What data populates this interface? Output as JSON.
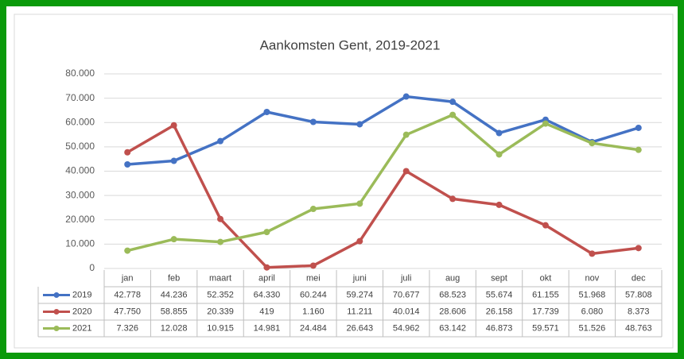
{
  "chart_data": {
    "type": "line",
    "title": "Aankomsten Gent, 2019-2021",
    "categories": [
      "jan",
      "feb",
      "maart",
      "april",
      "mei",
      "juni",
      "juli",
      "aug",
      "sept",
      "okt",
      "nov",
      "dec"
    ],
    "series": [
      {
        "name": "2019",
        "color": "#4472c4",
        "values": [
          42778,
          44236,
          52352,
          64330,
          60244,
          59274,
          70677,
          68523,
          55674,
          61155,
          51968,
          57808
        ],
        "value_labels": [
          "42.778",
          "44.236",
          "52.352",
          "64.330",
          "60.244",
          "59.274",
          "70.677",
          "68.523",
          "55.674",
          "61.155",
          "51.968",
          "57.808"
        ]
      },
      {
        "name": "2020",
        "color": "#c0504d",
        "values": [
          47750,
          58855,
          20339,
          419,
          1160,
          11211,
          40014,
          28606,
          26158,
          17739,
          6080,
          8373
        ],
        "value_labels": [
          "47.750",
          "58.855",
          "20.339",
          "419",
          "1.160",
          "11.211",
          "40.014",
          "28.606",
          "26.158",
          "17.739",
          "6.080",
          "8.373"
        ]
      },
      {
        "name": "2021",
        "color": "#9bbb59",
        "values": [
          7326,
          12028,
          10915,
          14981,
          24484,
          26643,
          54962,
          63142,
          46873,
          59571,
          51526,
          48763
        ],
        "value_labels": [
          "7.326",
          "12.028",
          "10.915",
          "14.981",
          "24.484",
          "26.643",
          "54.962",
          "63.142",
          "46.873",
          "59.571",
          "51.526",
          "48.763"
        ]
      }
    ],
    "ylim": [
      0,
      80000
    ],
    "yticks": [
      0,
      {
        "value": 10000,
        "label": "10.000"
      },
      {
        "value": 20000,
        "label": "20.000"
      },
      {
        "value": 30000,
        "label": "30.000"
      },
      {
        "value": 40000,
        "label": "40.000"
      },
      {
        "value": 50000,
        "label": "50.000"
      },
      {
        "value": 60000,
        "label": "60.000"
      },
      {
        "value": 70000,
        "label": "70.000"
      },
      {
        "value": 80000,
        "label": "80.000"
      }
    ],
    "grid": true
  }
}
